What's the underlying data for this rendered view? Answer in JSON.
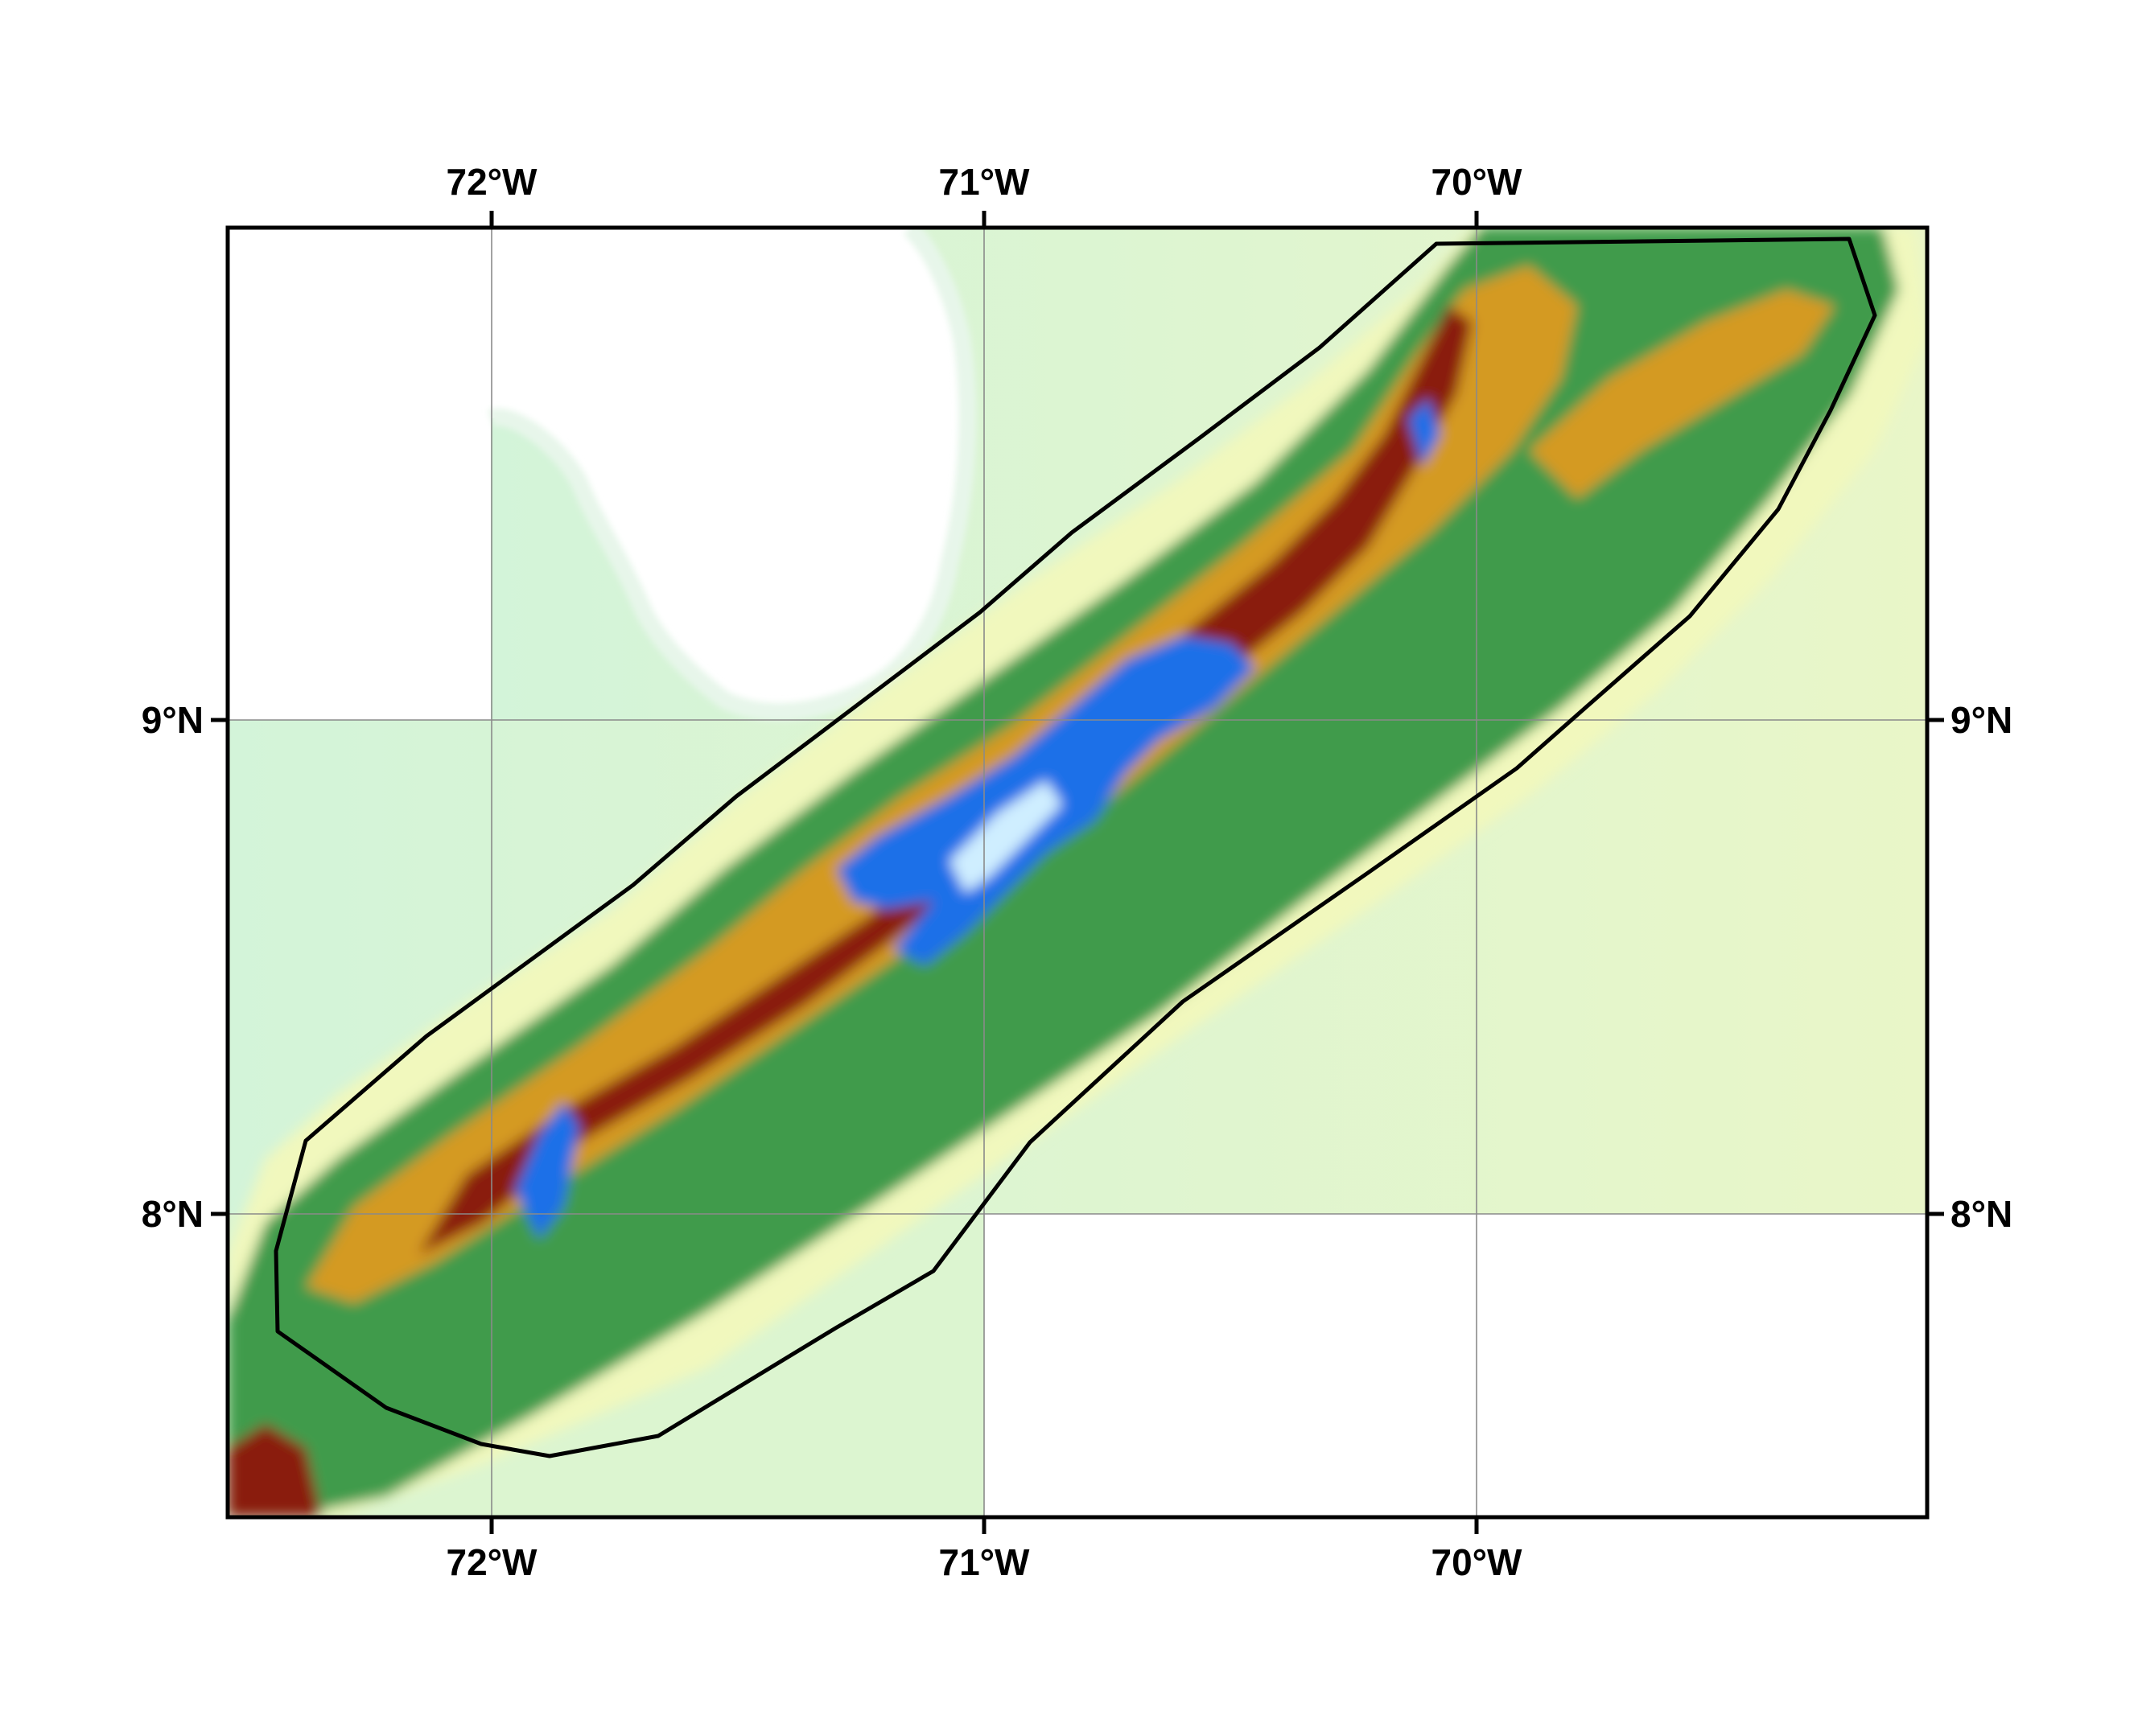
{
  "map": {
    "type": "elevation-relief-map",
    "x_labels_top": [
      "72°W",
      "71°W",
      "70°W"
    ],
    "x_labels_bottom": [
      "72°W",
      "71°W",
      "70°W"
    ],
    "y_labels_left": [
      "9°N",
      "8°N"
    ],
    "y_labels_right": [
      "9°N",
      "8°N"
    ],
    "graticule": true,
    "colors": {
      "lowland": "#cdf3d8",
      "plain": "#f2f8c0",
      "hills": "#3a9a4a",
      "slopes": "#d69a1a",
      "high": "#8b1a0a",
      "peaks": "#1e6fe6",
      "summit": "#d8f4ff",
      "frame": "#000000"
    },
    "study_area_outline": true
  }
}
